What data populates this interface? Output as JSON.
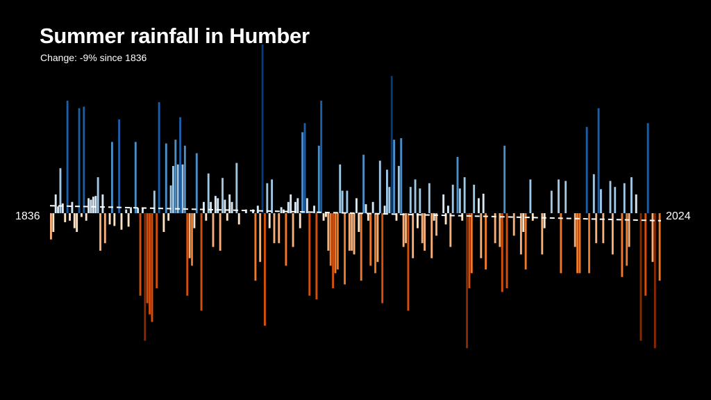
{
  "title": "Summer rainfall in Humber",
  "subtitle": "Change: -9% since 1836",
  "chart_data": {
    "type": "bar",
    "x_start_label": "1836",
    "x_end_label": "2024",
    "start_year": 1836,
    "end_year": 2024,
    "values": [
      -35,
      -25,
      25,
      9,
      60,
      13,
      -12,
      150,
      -10,
      15,
      -20,
      -25,
      140,
      -5,
      142,
      -10,
      20,
      18,
      22,
      23,
      48,
      -50,
      25,
      -40,
      0,
      -15,
      95,
      -17,
      0,
      125,
      -22,
      0,
      5,
      -18,
      8,
      0,
      95,
      7,
      -110,
      7,
      -170,
      -120,
      -135,
      -145,
      30,
      -100,
      148,
      0,
      -25,
      93,
      -10,
      37,
      63,
      98,
      65,
      128,
      65,
      90,
      -110,
      -60,
      -70,
      -20,
      80,
      0,
      -130,
      15,
      -10,
      53,
      15,
      -45,
      23,
      20,
      -50,
      47,
      18,
      -10,
      25,
      15,
      0,
      67,
      -15,
      0,
      0,
      5,
      0,
      0,
      5,
      -90,
      10,
      -65,
      225,
      -150,
      40,
      -20,
      45,
      -40,
      0,
      -40,
      8,
      5,
      -70,
      15,
      25,
      -45,
      15,
      20,
      -20,
      108,
      120,
      20,
      -110,
      0,
      10,
      -115,
      90,
      150,
      -10,
      -5,
      -50,
      -70,
      -100,
      -80,
      -75,
      65,
      30,
      -95,
      30,
      -50,
      -50,
      -55,
      20,
      -25,
      -90,
      78,
      12,
      -10,
      -70,
      15,
      -80,
      -65,
      70,
      -120,
      10,
      58,
      35,
      183,
      98,
      -10,
      63,
      100,
      -45,
      -40,
      -130,
      35,
      -60,
      45,
      -20,
      33,
      -40,
      -50,
      0,
      40,
      -60,
      -10,
      -30,
      0,
      0,
      25,
      -15,
      10,
      -45,
      38,
      0,
      75,
      33,
      -10,
      48,
      -180,
      -100,
      -80,
      38,
      0,
      20,
      -60,
      26,
      -75,
      0,
      0,
      0,
      -40,
      0,
      -45,
      -105,
      90,
      -100,
      0,
      0,
      -30,
      0,
      0,
      -55,
      -25,
      -75,
      0,
      45,
      -10,
      0,
      0,
      0,
      -55,
      -20,
      0,
      0,
      30,
      0,
      0,
      45,
      -80,
      0,
      43,
      0,
      0,
      0,
      -45,
      -80,
      -80,
      0,
      0,
      115,
      -80,
      0,
      52,
      -40,
      140,
      32,
      -40,
      0,
      0,
      43,
      -55,
      35,
      0,
      0,
      -85,
      40,
      -70,
      -45,
      48,
      0,
      25,
      0,
      -170,
      0,
      -110,
      120,
      0,
      -65,
      -180,
      0,
      -90
    ],
    "trend": {
      "start": 10,
      "end": -10
    },
    "y_range": [
      -200,
      240
    ],
    "colors": {
      "deep_blue": "#083a7a",
      "blue": "#1a5fa8",
      "mid_blue": "#4a8fc8",
      "light_blue": "#9ec8e6",
      "pale_blue": "#d8e8f5",
      "pale_orange": "#fde2c4",
      "light_orange": "#f8b078",
      "orange": "#ee7a2a",
      "deep_orange": "#d4510c",
      "dark_orange": "#8a2a04",
      "trend": "#ffffff"
    }
  }
}
